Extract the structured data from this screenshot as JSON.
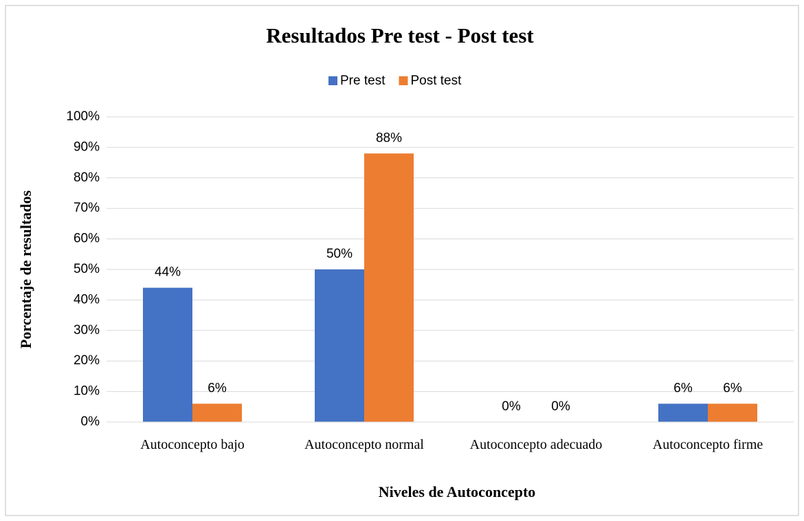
{
  "chart_data": {
    "type": "bar",
    "title": "Resultados Pre test - Post test",
    "xlabel": "Niveles de Autoconcepto",
    "ylabel": "Porcentaje de resultados",
    "categories": [
      "Autoconcepto bajo",
      "Autoconcepto normal",
      "Autoconcepto adecuado",
      "Autoconcepto firme"
    ],
    "series": [
      {
        "name": "Pre test",
        "color": "#4472c4",
        "values": [
          44,
          50,
          0,
          6
        ],
        "value_labels": [
          "44%",
          "50%",
          "0%",
          "6%"
        ]
      },
      {
        "name": "Post test",
        "color": "#ed7d31",
        "values": [
          6,
          88,
          0,
          6
        ],
        "value_labels": [
          "6%",
          "88%",
          "0%",
          "6%"
        ]
      }
    ],
    "ylim": [
      0,
      100
    ],
    "yticks": [
      {
        "value": 0,
        "label": "0%"
      },
      {
        "value": 10,
        "label": "10%"
      },
      {
        "value": 20,
        "label": "20%"
      },
      {
        "value": 30,
        "label": "30%"
      },
      {
        "value": 40,
        "label": "40%"
      },
      {
        "value": 50,
        "label": "50%"
      },
      {
        "value": 60,
        "label": "60%"
      },
      {
        "value": 70,
        "label": "70%"
      },
      {
        "value": 80,
        "label": "80%"
      },
      {
        "value": 90,
        "label": "90%"
      },
      {
        "value": 100,
        "label": "100%"
      }
    ],
    "grid": true,
    "legend": "top"
  }
}
